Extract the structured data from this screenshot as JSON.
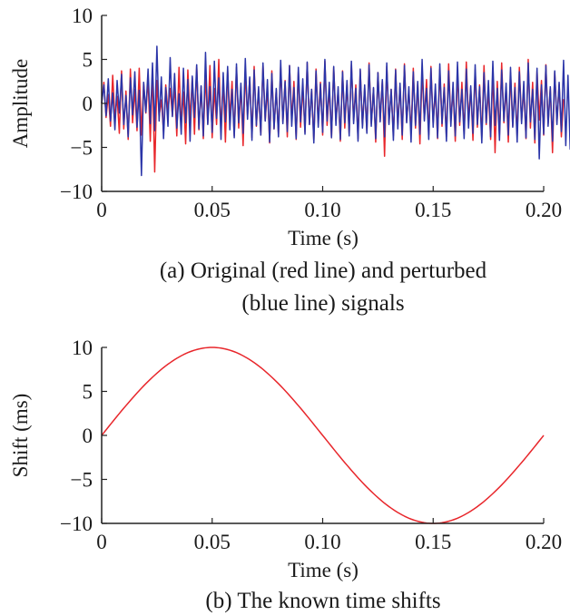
{
  "chart_data": [
    {
      "id": "a",
      "type": "line",
      "caption_line1": "(a) Original (red line) and perturbed",
      "caption_line2": "(blue line) signals",
      "xlabel": "Time (s)",
      "ylabel": "Amplitude",
      "xlim": [
        0,
        0.2
      ],
      "ylim": [
        -10,
        10
      ],
      "xticks": [
        0,
        0.05,
        0.1,
        0.15,
        0.2
      ],
      "xtick_labels": [
        "0",
        "0.05",
        "0.10",
        "0.15",
        "0.20"
      ],
      "yticks": [
        -10,
        -5,
        0,
        5,
        10
      ],
      "ytick_labels": [
        "−10",
        "−5",
        "0",
        "5",
        "10"
      ],
      "series": [
        {
          "name": "Original",
          "color": "#e8262b",
          "x_start": 0,
          "x_step": 0.001,
          "values": [
            0.0,
            2.4,
            -1.6,
            1.0,
            -2.6,
            3.2,
            -1.8,
            0.8,
            -3.4,
            3.7,
            -2.9,
            1.4,
            -4.1,
            3.9,
            -2.2,
            1.6,
            -3.1,
            4.0,
            -3.6,
            2.3,
            -1.1,
            2.9,
            -4.3,
            3.8,
            -7.8,
            2.6,
            -1.5,
            0.4,
            -3.2,
            2.1,
            -0.9,
            1.7,
            -1.4,
            2.0,
            -3.7,
            4.1,
            -2.5,
            1.3,
            -4.6,
            3.8,
            -1.9,
            2.9,
            -3.5,
            4.3,
            -3.0,
            1.9,
            -4.0,
            3.2,
            -2.3,
            4.3,
            -3.9,
            1.7,
            -2.4,
            5.0,
            -3.3,
            2.7,
            -4.4,
            3.8,
            -1.6,
            2.5,
            -3.7,
            4.1,
            -2.8,
            1.9,
            -4.8,
            3.6,
            -1.4,
            2.9,
            -3.9,
            4.2,
            -2.6,
            1.5,
            -3.6,
            4.4,
            -2.0,
            1.8,
            -4.5,
            3.7,
            -2.9,
            1.6,
            -3.5,
            4.2,
            -2.1,
            2.6,
            -3.8,
            4.3,
            -1.9,
            2.5,
            -4.1,
            3.6,
            -2.7,
            1.9,
            -3.3,
            4.6,
            -2.4,
            1.6,
            -4.2,
            3.9,
            -2.2,
            2.4,
            -3.6,
            4.8,
            -2.5,
            1.7,
            -3.9,
            4.1,
            -2.0,
            1.5,
            -4.3,
            3.7,
            -2.8,
            2.3,
            -3.5,
            4.4,
            -1.9,
            2.1,
            -4.0,
            3.8,
            -2.6,
            1.8,
            -3.2,
            4.6,
            -2.3,
            1.7,
            -4.4,
            3.5,
            -2.0,
            2.6,
            -6.0,
            4.2,
            -2.2,
            1.6,
            -3.7,
            3.9,
            -2.5,
            2.0,
            -4.1,
            4.5,
            -2.1,
            1.5,
            -3.4,
            4.0,
            -2.8,
            2.3,
            -4.6,
            3.7,
            -1.8,
            2.7,
            -3.6,
            4.2,
            -2.3,
            1.6,
            -4.0,
            3.9,
            -2.6,
            2.2,
            -3.8,
            4.5,
            -2.1,
            1.7,
            -4.3,
            3.6,
            -2.5,
            2.4,
            -3.5,
            4.7,
            -2.0,
            1.8,
            -4.2,
            3.8,
            -2.7,
            2.1,
            -3.9,
            4.3,
            -2.4,
            1.6,
            -4.1,
            3.7,
            -5.6,
            2.5,
            -3.6,
            4.6,
            -2.2,
            1.9,
            -4.4,
            3.5,
            -2.6,
            2.3,
            -3.7,
            4.1,
            -2.0,
            1.7,
            -4.0,
            5.0,
            -2.8,
            2.4,
            -4.5,
            3.7,
            -1.9,
            2.6,
            -3.6,
            4.4,
            -2.3,
            1.8,
            -5.6,
            3.6,
            -2.1,
            2.2,
            -3.8,
            0.5
          ]
        },
        {
          "name": "Perturbed",
          "color": "#2b35a8",
          "x_start": 0,
          "x_step": 0.001,
          "values": [
            0.0,
            2.1,
            -1.4,
            2.8,
            -2.0,
            1.2,
            -3.0,
            2.6,
            -1.1,
            3.3,
            -2.4,
            0.9,
            -3.8,
            2.9,
            -1.3,
            3.6,
            -2.7,
            1.5,
            -8.2,
            2.4,
            -1.0,
            3.9,
            -2.3,
            4.6,
            -3.1,
            6.5,
            -2.0,
            3.0,
            -4.0,
            1.8,
            -2.6,
            5.2,
            -1.5,
            3.4,
            -2.8,
            1.1,
            -3.5,
            4.0,
            -2.2,
            2.7,
            -4.3,
            3.1,
            -1.6,
            4.4,
            -2.9,
            2.0,
            -3.7,
            5.8,
            -2.4,
            1.9,
            -3.3,
            4.8,
            -1.7,
            2.9,
            -4.1,
            3.5,
            -2.1,
            4.2,
            -3.0,
            1.6,
            -3.9,
            4.5,
            -2.2,
            2.3,
            -3.4,
            5.1,
            -1.8,
            3.0,
            -4.2,
            3.8,
            -2.5,
            1.9,
            -3.6,
            4.6,
            -2.0,
            2.7,
            -4.4,
            3.4,
            -2.9,
            1.7,
            -3.8,
            4.9,
            -2.3,
            2.5,
            -3.2,
            4.3,
            -2.6,
            1.8,
            -4.0,
            4.1,
            -2.1,
            2.8,
            -3.5,
            4.7,
            -2.4,
            1.6,
            -4.5,
            3.7,
            -2.7,
            2.2,
            -3.3,
            5.0,
            -2.0,
            2.4,
            -3.9,
            4.2,
            -2.5,
            1.9,
            -4.1,
            3.6,
            -2.2,
            2.6,
            -3.7,
            4.8,
            -2.3,
            1.7,
            -4.3,
            3.9,
            -2.8,
            2.1,
            -3.4,
            4.4,
            -2.6,
            1.8,
            -4.0,
            3.5,
            -2.1,
            2.7,
            -3.8,
            4.6,
            -2.4,
            1.6,
            -4.2,
            3.8,
            -2.9,
            2.3,
            -3.6,
            4.3,
            -2.2,
            1.9,
            -4.4,
            3.6,
            -2.5,
            2.5,
            -3.5,
            5.0,
            -2.0,
            1.7,
            -4.1,
            4.0,
            -2.7,
            2.2,
            -3.9,
            4.5,
            -2.3,
            1.8,
            -4.3,
            3.7,
            -2.6,
            2.4,
            -3.7,
            4.7,
            -2.1,
            1.6,
            -4.0,
            3.9,
            -2.8,
            2.0,
            -3.4,
            4.4,
            -2.4,
            1.9,
            -4.5,
            3.5,
            -2.2,
            2.6,
            -3.8,
            4.8,
            -2.5,
            1.7,
            -4.2,
            3.8,
            -2.0,
            2.3,
            -3.6,
            4.1,
            -2.7,
            1.8,
            -4.4,
            3.6,
            -2.3,
            2.5,
            -3.9,
            4.6,
            -2.1,
            1.6,
            -4.1,
            4.0,
            -6.3,
            2.1,
            -3.5,
            4.3,
            -2.6,
            1.9,
            -4.3,
            3.7,
            -2.4,
            2.4,
            -3.2,
            4.9,
            -4.8,
            3.2,
            -5.2,
            2.1,
            0.2
          ]
        }
      ]
    },
    {
      "id": "b",
      "type": "line",
      "caption_line1": "(b) The known time shifts",
      "xlabel": "Time (s)",
      "ylabel": "Shift (ms)",
      "xlim": [
        0,
        0.2
      ],
      "ylim": [
        -10,
        10
      ],
      "xticks": [
        0,
        0.05,
        0.1,
        0.15,
        0.2
      ],
      "xtick_labels": [
        "0",
        "0.05",
        "0.10",
        "0.15",
        "0.20"
      ],
      "yticks": [
        -10,
        -5,
        0,
        5,
        10
      ],
      "ytick_labels": [
        "−10",
        "−5",
        "0",
        "5",
        "10"
      ],
      "series": [
        {
          "name": "Time shift",
          "color": "#e8262b",
          "x": [
            0.0,
            0.01,
            0.02,
            0.03,
            0.04,
            0.05,
            0.06,
            0.07,
            0.08,
            0.09,
            0.1,
            0.11,
            0.12,
            0.13,
            0.14,
            0.15,
            0.16,
            0.17,
            0.18,
            0.19,
            0.2
          ],
          "values": [
            0.0,
            3.09,
            5.88,
            8.09,
            9.51,
            10.0,
            9.51,
            8.09,
            5.88,
            3.09,
            0.0,
            -3.09,
            -5.88,
            -8.09,
            -9.51,
            -10.0,
            -9.51,
            -8.09,
            -5.88,
            -3.09,
            0.0
          ]
        }
      ]
    }
  ]
}
